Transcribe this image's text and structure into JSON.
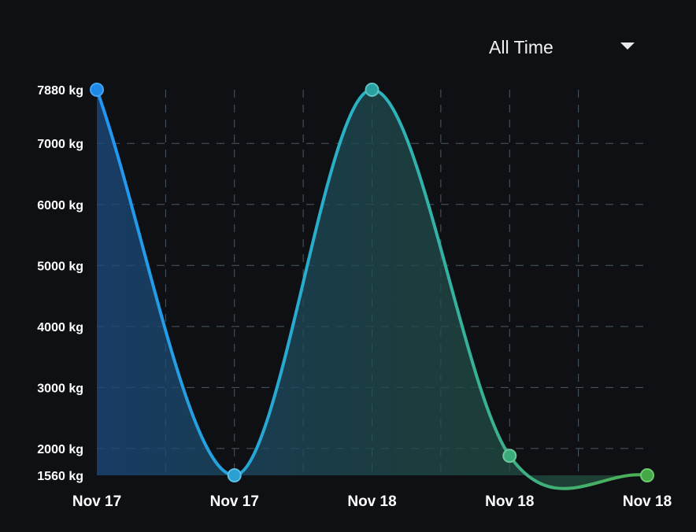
{
  "range_selector": {
    "selected": "All Time",
    "icon": "caret-down-icon"
  },
  "chart_data": {
    "type": "area",
    "categories": [
      "Nov 17",
      "Nov 17",
      "Nov 18",
      "Nov 18",
      "Nov 18"
    ],
    "series": [
      {
        "values": [
          7880,
          1560,
          7880,
          1880,
          1560
        ]
      }
    ],
    "y_ticks": [
      "7880 kg",
      "7000 kg",
      "6000 kg",
      "5000 kg",
      "4000 kg",
      "3000 kg",
      "2000 kg",
      "1560 kg"
    ],
    "y_tick_values": [
      7880,
      7000,
      6000,
      5000,
      4000,
      3000,
      2000,
      1560
    ],
    "ylim": [
      1560,
      7880
    ],
    "unit": "kg",
    "grid": true,
    "colors": {
      "start": "#2196f3",
      "end": "#4caf50",
      "background": "#0e1014",
      "grid": "#4a5a66"
    }
  }
}
